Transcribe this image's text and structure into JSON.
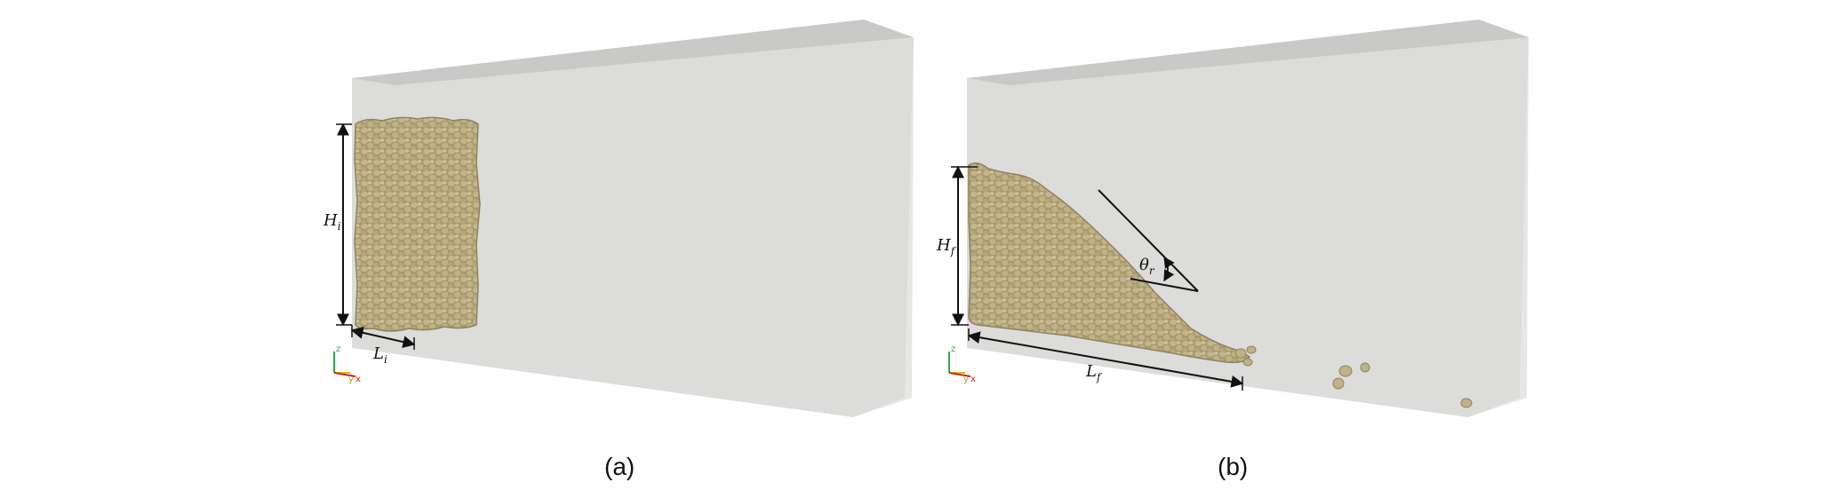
{
  "panels": [
    {
      "id": "a",
      "caption": "(a)",
      "dimensions": {
        "height": {
          "base": "H",
          "sub": "i"
        },
        "length": {
          "base": "L",
          "sub": "i"
        }
      }
    },
    {
      "id": "b",
      "caption": "(b)",
      "dimensions": {
        "height": {
          "base": "H",
          "sub": "f"
        },
        "length": {
          "base": "L",
          "sub": "f"
        },
        "angle": {
          "base": "θ",
          "sub": "r"
        }
      }
    }
  ],
  "axes_triad": {
    "labels": [
      "z",
      "y",
      "x"
    ]
  },
  "colors": {
    "box_face": "#dcdcda",
    "box_top": "#c9c9c8",
    "box_side": "#e6e6e4",
    "particle": "#b8ab80",
    "particle_dark": "#8e8260",
    "axis_z": "#2fa84f",
    "axis_y": "#d8c21a",
    "axis_x": "#d22020"
  }
}
